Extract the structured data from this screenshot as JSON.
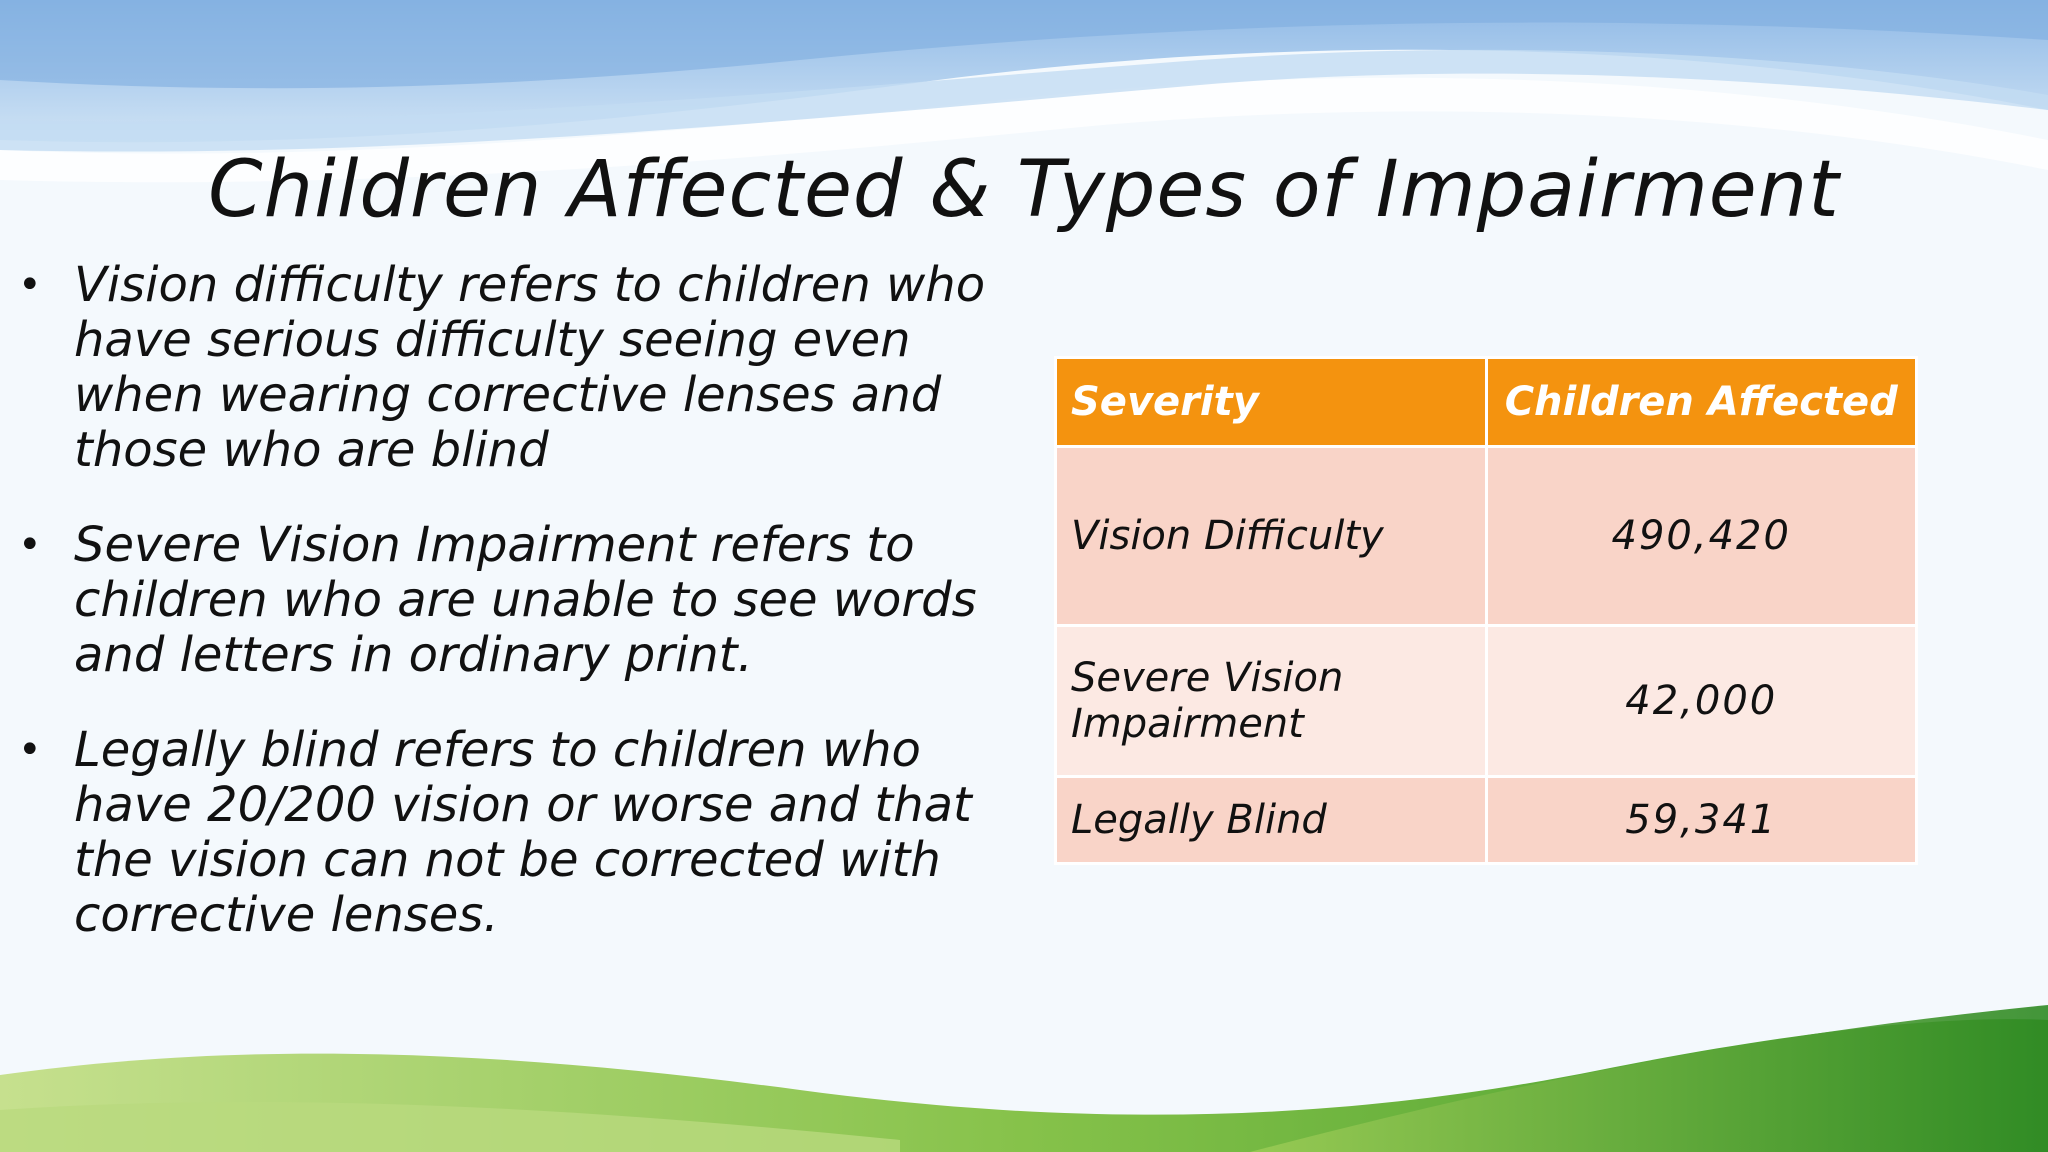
{
  "slide": {
    "title": "Children Affected & Types of Impairment",
    "bullets": [
      {
        "text": "Vision difficulty refers to children who have serious difficulty seeing even when wearing corrective lenses and those who are blind"
      },
      {
        "text": "Severe Vision Impairment refers to children who are unable to see words and letters in ordinary print."
      },
      {
        "text": "Legally blind refers to children who have 20/200 vision or worse and that the vision can not be corrected with corrective lenses."
      }
    ],
    "bullet_glyph": "•"
  },
  "table": {
    "headers": [
      "Severity",
      "Children Affected"
    ],
    "rows": [
      {
        "severity": "Vision Difficulty",
        "children": "490,420"
      },
      {
        "severity": "Severe Vision Impairment",
        "children": "42,000"
      },
      {
        "severity": "Legally Blind",
        "children": "59,341"
      }
    ]
  },
  "colors": {
    "header_orange": "#f4930f",
    "row_dark": "#f9d4c8",
    "row_light": "#fce9e3",
    "sky_blue": "#a9cbec",
    "grass_green": "#6fb43a"
  }
}
